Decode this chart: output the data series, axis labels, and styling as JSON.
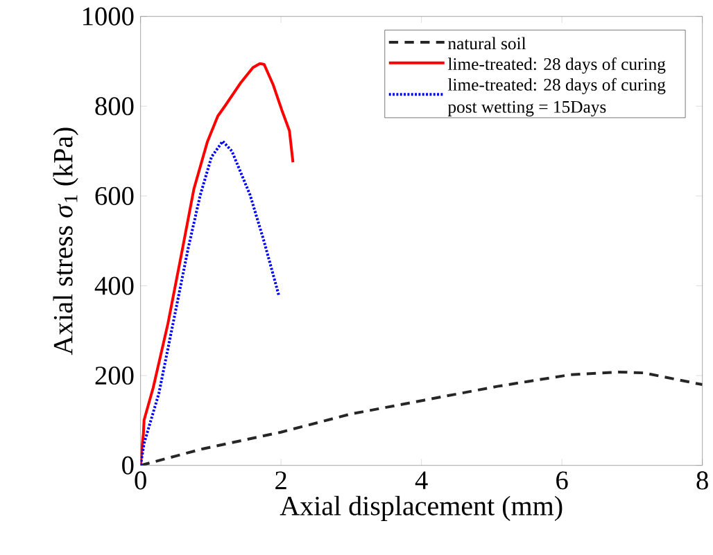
{
  "chart_data": {
    "type": "line",
    "xlabel": "Axial displacement (mm)",
    "ylabel": "Axial stress *σ*$_{1}$ (kPa)",
    "xlim": [
      0,
      8
    ],
    "ylim": [
      0,
      1000
    ],
    "xticks": [
      0,
      2,
      4,
      6,
      8
    ],
    "yticks": [
      0,
      200,
      400,
      600,
      800,
      1000
    ],
    "legend": "top right",
    "series": [
      {
        "name": "natural soil",
        "color": "#262626",
        "line_style": "dashed",
        "x": [
          0,
          0.89,
          2.0,
          2.98,
          4.03,
          5.08,
          6.12,
          6.8,
          7.17,
          7.9,
          8.0
        ],
        "values": [
          0,
          37,
          74,
          114,
          145,
          176,
          202,
          208,
          206,
          183,
          180
        ]
      },
      {
        "name": "lime-treated: 28 days of curing",
        "color": "#ff0000",
        "line_style": "solid",
        "x": [
          0,
          0.02,
          0.04,
          0.05,
          0.18,
          0.39,
          0.6,
          0.76,
          0.95,
          1.1,
          1.2,
          1.43,
          1.6,
          1.7,
          1.76,
          1.89,
          2.01,
          2.12,
          2.17
        ],
        "values": [
          0,
          40,
          70,
          101,
          173,
          316,
          485,
          616,
          720,
          778,
          800,
          853,
          886,
          895,
          893,
          847,
          792,
          745,
          675
        ]
      },
      {
        "name": "lime-treated: 28 days of curing post wetting = 15Days",
        "color": "#0000ff",
        "line_style": "dotted",
        "x": [
          0,
          0.05,
          0.26,
          0.47,
          0.68,
          0.85,
          1.01,
          1.17,
          1.3,
          1.56,
          1.76,
          1.97
        ],
        "values": [
          0,
          49,
          160,
          322,
          485,
          602,
          687,
          722,
          700,
          602,
          498,
          378
        ]
      }
    ]
  }
}
